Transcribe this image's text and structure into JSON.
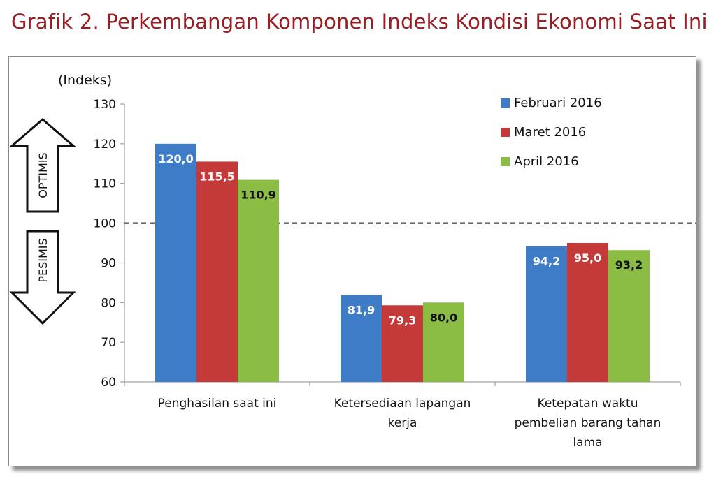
{
  "title": "Grafik 2. Perkembangan Komponen Indeks Kondisi Ekonomi Saat Ini",
  "chart_data": {
    "type": "bar",
    "ylabel": "(Indeks)",
    "ylim": [
      60,
      130
    ],
    "yticks": [
      60,
      70,
      80,
      90,
      100,
      110,
      120,
      130
    ],
    "reference_line": 100,
    "categories": [
      [
        "Penghasilan saat ini"
      ],
      [
        "Ketersediaan lapangan",
        "kerja"
      ],
      [
        "Ketepatan waktu",
        "pembelian barang tahan",
        "lama"
      ]
    ],
    "series": [
      {
        "name": "Februari 2016",
        "color": "#3e7cc8",
        "values": [
          120.0,
          81.9,
          94.2
        ],
        "labels": [
          "120,0",
          "81,9",
          "94,2"
        ],
        "label_color": "#ffffff"
      },
      {
        "name": "Maret 2016",
        "color": "#c33a38",
        "values": [
          115.5,
          79.3,
          95.0
        ],
        "labels": [
          "115,5",
          "79,3",
          "95,0"
        ],
        "label_color": "#ffffff"
      },
      {
        "name": "April 2016",
        "color": "#8bbd45",
        "values": [
          110.9,
          80.0,
          93.2
        ],
        "labels": [
          "110,9",
          "80,0",
          "93,2"
        ],
        "label_color": "#111111"
      }
    ],
    "legend_position": "top-right",
    "arrows": {
      "up": "OPTIMIS",
      "down": "PESIMIS"
    }
  }
}
